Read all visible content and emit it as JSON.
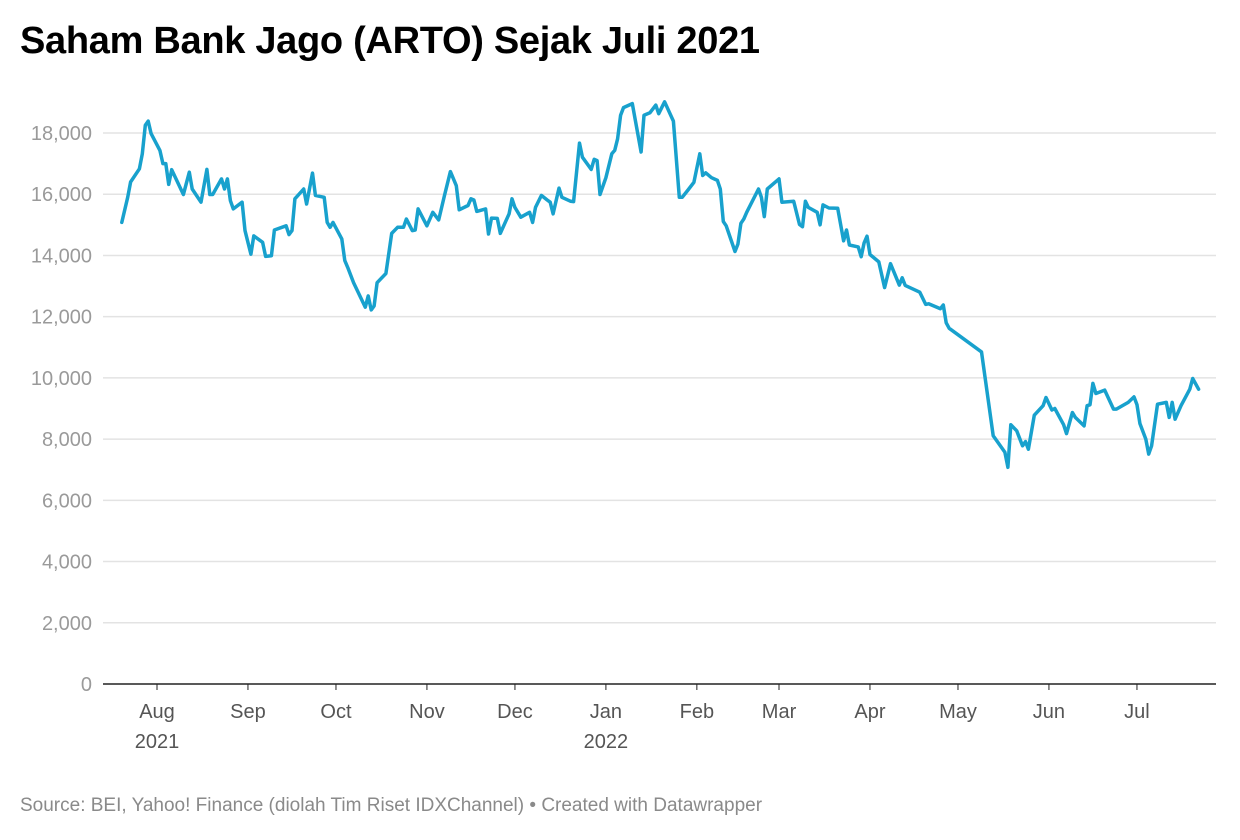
{
  "chart_data": {
    "type": "line",
    "title": "Saham Bank Jago (ARTO) Sejak Juli 2021",
    "source": "Source: BEI, Yahoo! Finance (diolah Tim Riset IDXChannel) • Created with Datawrapper",
    "xlabel": "",
    "ylabel": "",
    "x_unit": "days since 2021-08-01",
    "ylim": [
      0,
      19000
    ],
    "y_ticks": [
      0,
      2000,
      4000,
      6000,
      8000,
      10000,
      12000,
      14000,
      16000,
      18000
    ],
    "y_tick_labels": [
      "0",
      "2,000",
      "4,000",
      "6,000",
      "8,000",
      "10,000",
      "12,000",
      "14,000",
      "16,000",
      "18,000"
    ],
    "x_ticks": [
      {
        "day": 0,
        "label": "Aug",
        "year": "2021"
      },
      {
        "day": 31,
        "label": "Sep"
      },
      {
        "day": 61,
        "label": "Oct"
      },
      {
        "day": 92,
        "label": "Nov"
      },
      {
        "day": 122,
        "label": "Dec"
      },
      {
        "day": 153,
        "label": "Jan",
        "year": "2022"
      },
      {
        "day": 184,
        "label": "Feb"
      },
      {
        "day": 212,
        "label": "Mar"
      },
      {
        "day": 243,
        "label": "Apr"
      },
      {
        "day": 273,
        "label": "May"
      },
      {
        "day": 304,
        "label": "Jun"
      },
      {
        "day": 334,
        "label": "Jul"
      }
    ],
    "grid": true,
    "line_color": "#18a1cd",
    "series": [
      {
        "name": "ARTO",
        "points": [
          [
            -12,
            15080
          ],
          [
            -10,
            15900
          ],
          [
            -9,
            16400
          ],
          [
            -6,
            16830
          ],
          [
            -5,
            17320
          ],
          [
            -4,
            18250
          ],
          [
            -3,
            18390
          ],
          [
            -2,
            17980
          ],
          [
            1,
            17430
          ],
          [
            2,
            17000
          ],
          [
            3,
            17000
          ],
          [
            4,
            16320
          ],
          [
            5,
            16800
          ],
          [
            9,
            15990
          ],
          [
            11,
            16720
          ],
          [
            12,
            16170
          ],
          [
            15,
            15740
          ],
          [
            17,
            16810
          ],
          [
            18,
            15990
          ],
          [
            19,
            15990
          ],
          [
            22,
            16500
          ],
          [
            23,
            16170
          ],
          [
            24,
            16500
          ],
          [
            25,
            15790
          ],
          [
            26,
            15520
          ],
          [
            29,
            15740
          ],
          [
            30,
            14810
          ],
          [
            32,
            14040
          ],
          [
            33,
            14640
          ],
          [
            36,
            14430
          ],
          [
            37,
            13970
          ],
          [
            39,
            13990
          ],
          [
            40,
            14830
          ],
          [
            44,
            14970
          ],
          [
            45,
            14680
          ],
          [
            46,
            14810
          ],
          [
            47,
            15850
          ],
          [
            50,
            16170
          ],
          [
            51,
            15680
          ],
          [
            53,
            16690
          ],
          [
            54,
            15960
          ],
          [
            57,
            15900
          ],
          [
            58,
            15080
          ],
          [
            59,
            14920
          ],
          [
            60,
            15080
          ],
          [
            63,
            14540
          ],
          [
            64,
            13830
          ],
          [
            65,
            13610
          ],
          [
            67,
            13110
          ],
          [
            71,
            12310
          ],
          [
            72,
            12680
          ],
          [
            73,
            12220
          ],
          [
            74,
            12350
          ],
          [
            75,
            13110
          ],
          [
            78,
            13410
          ],
          [
            80,
            14720
          ],
          [
            82,
            14920
          ],
          [
            84,
            14920
          ],
          [
            85,
            15190
          ],
          [
            87,
            14810
          ],
          [
            88,
            14830
          ],
          [
            89,
            15520
          ],
          [
            92,
            14970
          ],
          [
            94,
            15410
          ],
          [
            96,
            15160
          ],
          [
            98,
            15960
          ],
          [
            100,
            16740
          ],
          [
            102,
            16280
          ],
          [
            103,
            15490
          ],
          [
            106,
            15630
          ],
          [
            107,
            15850
          ],
          [
            108,
            15810
          ],
          [
            109,
            15440
          ],
          [
            112,
            15520
          ],
          [
            113,
            14700
          ],
          [
            114,
            15220
          ],
          [
            116,
            15210
          ],
          [
            117,
            14720
          ],
          [
            120,
            15360
          ],
          [
            121,
            15850
          ],
          [
            122,
            15570
          ],
          [
            124,
            15250
          ],
          [
            127,
            15410
          ],
          [
            128,
            15080
          ],
          [
            129,
            15570
          ],
          [
            131,
            15960
          ],
          [
            133,
            15810
          ],
          [
            134,
            15740
          ],
          [
            135,
            15360
          ],
          [
            137,
            16200
          ],
          [
            138,
            15900
          ],
          [
            141,
            15770
          ],
          [
            142,
            15760
          ],
          [
            144,
            17670
          ],
          [
            145,
            17210
          ],
          [
            148,
            16810
          ],
          [
            149,
            17140
          ],
          [
            150,
            17100
          ],
          [
            151,
            15990
          ],
          [
            153,
            16540
          ],
          [
            155,
            17320
          ],
          [
            156,
            17430
          ],
          [
            157,
            17810
          ],
          [
            158,
            18580
          ],
          [
            159,
            18830
          ],
          [
            162,
            18960
          ],
          [
            165,
            17380
          ],
          [
            166,
            18580
          ],
          [
            168,
            18660
          ],
          [
            170,
            18910
          ],
          [
            171,
            18630
          ],
          [
            173,
            19020
          ],
          [
            176,
            18390
          ],
          [
            178,
            15900
          ],
          [
            179,
            15900
          ],
          [
            181,
            16140
          ],
          [
            183,
            16390
          ],
          [
            185,
            17320
          ],
          [
            186,
            16610
          ],
          [
            187,
            16700
          ],
          [
            189,
            16540
          ],
          [
            191,
            16450
          ],
          [
            192,
            16170
          ],
          [
            193,
            15110
          ],
          [
            194,
            14970
          ],
          [
            197,
            14130
          ],
          [
            198,
            14370
          ],
          [
            199,
            15050
          ],
          [
            200,
            15190
          ],
          [
            201,
            15410
          ],
          [
            205,
            16170
          ],
          [
            206,
            15900
          ],
          [
            207,
            15270
          ],
          [
            208,
            16170
          ],
          [
            212,
            16500
          ],
          [
            213,
            15740
          ],
          [
            217,
            15770
          ],
          [
            219,
            15010
          ],
          [
            220,
            14940
          ],
          [
            221,
            15770
          ],
          [
            222,
            15570
          ],
          [
            225,
            15410
          ],
          [
            226,
            15000
          ],
          [
            227,
            15650
          ],
          [
            229,
            15550
          ],
          [
            232,
            15540
          ],
          [
            234,
            14480
          ],
          [
            235,
            14830
          ],
          [
            236,
            14340
          ],
          [
            239,
            14280
          ],
          [
            240,
            13960
          ],
          [
            241,
            14410
          ],
          [
            242,
            14630
          ],
          [
            243,
            14030
          ],
          [
            246,
            13790
          ],
          [
            248,
            12950
          ],
          [
            250,
            13730
          ],
          [
            253,
            13030
          ],
          [
            254,
            13270
          ],
          [
            255,
            13020
          ],
          [
            260,
            12800
          ],
          [
            262,
            12400
          ],
          [
            263,
            12420
          ],
          [
            267,
            12260
          ],
          [
            268,
            12380
          ],
          [
            269,
            11800
          ],
          [
            270,
            11620
          ],
          [
            281,
            10850
          ],
          [
            285,
            8110
          ],
          [
            289,
            7570
          ],
          [
            290,
            7080
          ],
          [
            291,
            8470
          ],
          [
            293,
            8270
          ],
          [
            295,
            7780
          ],
          [
            296,
            7920
          ],
          [
            297,
            7670
          ],
          [
            299,
            8780
          ],
          [
            302,
            9090
          ],
          [
            303,
            9360
          ],
          [
            305,
            8950
          ],
          [
            306,
            9000
          ],
          [
            309,
            8470
          ],
          [
            310,
            8180
          ],
          [
            312,
            8870
          ],
          [
            313,
            8710
          ],
          [
            316,
            8430
          ],
          [
            317,
            9090
          ],
          [
            318,
            9120
          ],
          [
            319,
            9820
          ],
          [
            320,
            9490
          ],
          [
            323,
            9600
          ],
          [
            326,
            8980
          ],
          [
            327,
            8980
          ],
          [
            331,
            9200
          ],
          [
            333,
            9380
          ],
          [
            334,
            9120
          ],
          [
            335,
            8510
          ],
          [
            337,
            8000
          ],
          [
            338,
            7510
          ],
          [
            339,
            7780
          ],
          [
            341,
            9140
          ],
          [
            344,
            9200
          ],
          [
            345,
            8710
          ],
          [
            346,
            9200
          ],
          [
            347,
            8650
          ],
          [
            349,
            9090
          ],
          [
            352,
            9630
          ],
          [
            353,
            9980
          ],
          [
            355,
            9630
          ]
        ]
      }
    ]
  }
}
